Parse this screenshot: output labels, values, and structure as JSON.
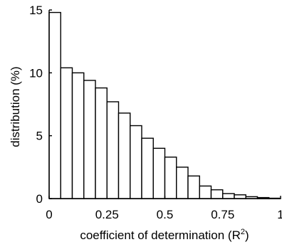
{
  "chart_data": {
    "type": "bar",
    "xlabel": "coefficient of determination (R",
    "xlabel_sup": "2",
    "xlabel_end": ")",
    "ylabel": "distribution (%)",
    "xlim": [
      0,
      1
    ],
    "ylim": [
      0,
      15
    ],
    "xticks": [
      0,
      0.25,
      0.5,
      0.75,
      1
    ],
    "xtick_labels": [
      "0",
      "0.25",
      "0.5",
      "0.75",
      "1"
    ],
    "yticks": [
      0,
      5,
      10,
      15
    ],
    "ytick_labels": [
      "0",
      "5",
      "10",
      "15"
    ],
    "grid": false,
    "bin_width": 0.05,
    "bins": [
      {
        "x0": 0.0,
        "x1": 0.05,
        "value": 14.8
      },
      {
        "x0": 0.05,
        "x1": 0.1,
        "value": 10.4
      },
      {
        "x0": 0.1,
        "x1": 0.15,
        "value": 10.0
      },
      {
        "x0": 0.15,
        "x1": 0.2,
        "value": 9.4
      },
      {
        "x0": 0.2,
        "x1": 0.25,
        "value": 8.8
      },
      {
        "x0": 0.25,
        "x1": 0.3,
        "value": 7.7
      },
      {
        "x0": 0.3,
        "x1": 0.35,
        "value": 6.8
      },
      {
        "x0": 0.35,
        "x1": 0.4,
        "value": 5.8
      },
      {
        "x0": 0.4,
        "x1": 0.45,
        "value": 4.8
      },
      {
        "x0": 0.45,
        "x1": 0.5,
        "value": 4.0
      },
      {
        "x0": 0.5,
        "x1": 0.55,
        "value": 3.3
      },
      {
        "x0": 0.55,
        "x1": 0.6,
        "value": 2.5
      },
      {
        "x0": 0.6,
        "x1": 0.65,
        "value": 1.8
      },
      {
        "x0": 0.65,
        "x1": 0.7,
        "value": 1.0
      },
      {
        "x0": 0.7,
        "x1": 0.75,
        "value": 0.7
      },
      {
        "x0": 0.75,
        "x1": 0.8,
        "value": 0.4
      },
      {
        "x0": 0.8,
        "x1": 0.85,
        "value": 0.3
      },
      {
        "x0": 0.85,
        "x1": 0.9,
        "value": 0.15
      },
      {
        "x0": 0.9,
        "x1": 0.95,
        "value": 0.08
      },
      {
        "x0": 0.95,
        "x1": 1.0,
        "value": 0.03
      }
    ],
    "colors": {
      "bar_fill": "#ffffff",
      "bar_stroke": "#000000",
      "axis": "#000000"
    }
  }
}
